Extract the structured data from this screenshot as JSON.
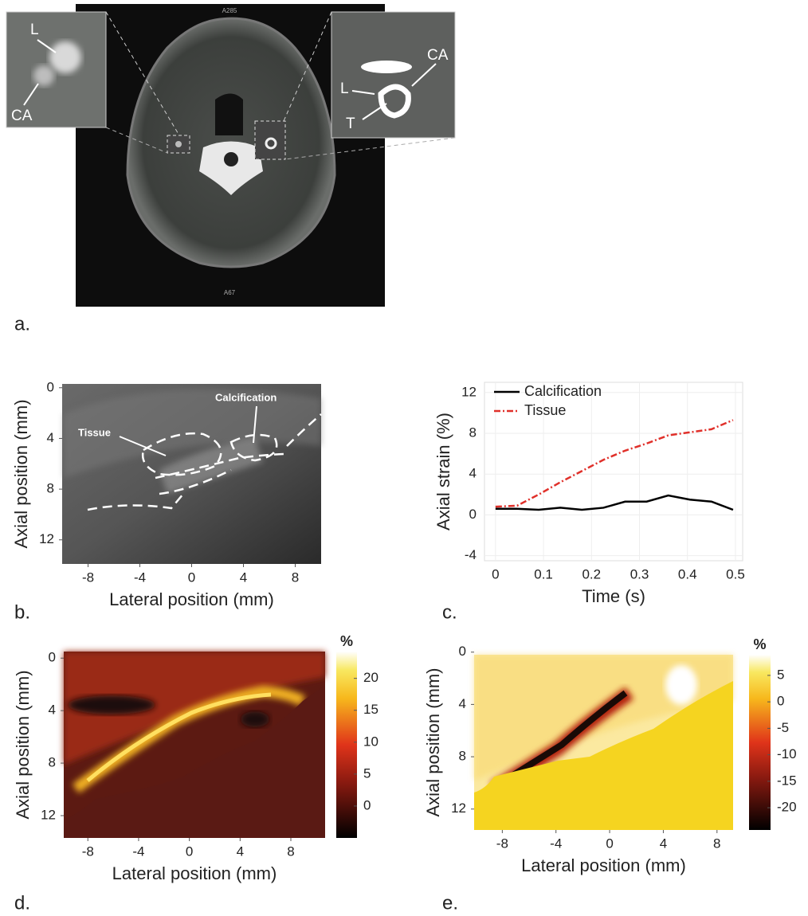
{
  "figure_a": {
    "label": "a.",
    "top_text": "A285",
    "bottom_text": "A67",
    "left_inset": {
      "lumen": "L",
      "artery": "CA"
    },
    "right_inset": {
      "artery": "CA",
      "lumen": "L",
      "tissue": "T"
    }
  },
  "chart_data": [
    {
      "type": "image",
      "label": "b.",
      "x_label": "Lateral position (mm)",
      "y_label": "Axial position (mm)",
      "annotations": [
        "Tissue",
        "Calcification"
      ],
      "xlim": [
        -10,
        10
      ],
      "xticks": [
        -8,
        -4,
        0,
        4,
        8
      ],
      "ylim": [
        -0.3,
        13.9
      ],
      "yticks": [
        0,
        4,
        8,
        12
      ],
      "y_downward": true
    },
    {
      "type": "line",
      "label": "c.",
      "x_label": "Time (s)",
      "y_label": "Axial strain (%)",
      "x": [
        0,
        0.045,
        0.09,
        0.135,
        0.18,
        0.225,
        0.27,
        0.315,
        0.36,
        0.405,
        0.45,
        0.495
      ],
      "series": [
        {
          "name": "Calcification",
          "color": "#000000",
          "dashed": false,
          "values": [
            0.6,
            0.6,
            0.5,
            0.7,
            0.5,
            0.7,
            1.3,
            1.3,
            1.9,
            1.5,
            1.3,
            0.5
          ]
        },
        {
          "name": "Tissue",
          "color": "#e0302a",
          "dashed": true,
          "values": [
            0.8,
            0.9,
            2.0,
            3.2,
            4.3,
            5.4,
            6.3,
            7.0,
            7.8,
            8.1,
            8.4,
            9.3
          ]
        }
      ],
      "xlim": [
        -0.023,
        0.515
      ],
      "xticks": [
        0,
        0.1,
        0.2,
        0.3,
        0.4,
        0.5
      ],
      "ylim": [
        -4.5,
        13
      ],
      "yticks": [
        -4,
        0,
        4,
        8,
        12
      ],
      "grid": true
    },
    {
      "type": "heatmap",
      "label": "d.",
      "x_label": "Lateral position (mm)",
      "y_label": "Axial position (mm)",
      "colorbar_label": "%",
      "xlim": [
        -9.9,
        10.7
      ],
      "xticks": [
        -8,
        -4,
        0,
        4,
        8
      ],
      "ylim": [
        -0.5,
        13.7
      ],
      "yticks": [
        0,
        4,
        8,
        12
      ],
      "y_downward": true,
      "clim": [
        -5,
        24.2
      ],
      "cticks": [
        0,
        5,
        10,
        15,
        20
      ]
    },
    {
      "type": "heatmap",
      "label": "e.",
      "x_label": "Lateral position (mm)",
      "y_label": "Axial position (mm)",
      "colorbar_label": "%",
      "xlim": [
        -10.1,
        9.2
      ],
      "xticks": [
        -8,
        -4,
        0,
        4,
        8
      ],
      "ylim": [
        0.2,
        13.6
      ],
      "yticks": [
        0,
        4,
        8,
        12
      ],
      "y_downward": true,
      "clim": [
        -24.2,
        8.9
      ],
      "cticks": [
        -20,
        -15,
        -10,
        -5,
        0,
        5
      ]
    }
  ]
}
